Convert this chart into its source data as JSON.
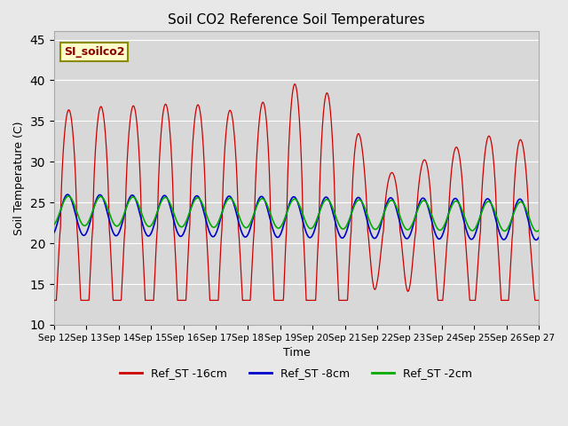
{
  "title": "Soil CO2 Reference Soil Temperatures",
  "xlabel": "Time",
  "ylabel": "Soil Temperature (C)",
  "ylim": [
    10,
    46
  ],
  "yticks": [
    10,
    15,
    20,
    25,
    30,
    35,
    40,
    45
  ],
  "legend_label": "SI_soilco2",
  "line_colors": {
    "16cm": "#cc0000",
    "8cm": "#0000cc",
    "2cm": "#00aa00"
  },
  "legend_entries": [
    "Ref_ST -16cm",
    "Ref_ST -8cm",
    "Ref_ST -2cm"
  ],
  "background_color": "#e8e8e8",
  "plot_bg_color": "#d8d8d8",
  "x_tick_labels": [
    "Sep 12",
    "Sep 13",
    "Sep 14",
    "Sep 15",
    "Sep 16",
    "Sep 17",
    "Sep 18",
    "Sep 19",
    "Sep 20",
    "Sep 21",
    "Sep 22",
    "Sep 23",
    "Sep 24",
    "Sep 25",
    "Sep 26",
    "Sep 27"
  ]
}
